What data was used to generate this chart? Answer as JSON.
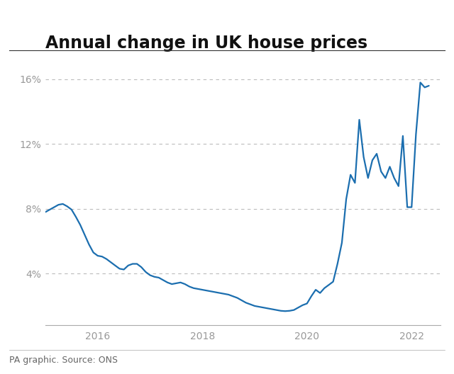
{
  "title": "Annual change in UK house prices",
  "source": "PA graphic. Source: ONS",
  "line_color": "#1b6eaf",
  "background_color": "#ffffff",
  "title_fontsize": 17,
  "source_fontsize": 9,
  "ytick_labels": [
    "4%",
    "8%",
    "12%",
    "16%"
  ],
  "ytick_values": [
    4,
    8,
    12,
    16
  ],
  "xtick_labels": [
    "2016",
    "2018",
    "2020",
    "2022"
  ],
  "xlim_start": 2015.0,
  "xlim_end": 2022.55,
  "ylim_min": 0.8,
  "ylim_max": 17.2,
  "x": [
    2015.0,
    2015.083,
    2015.167,
    2015.25,
    2015.333,
    2015.417,
    2015.5,
    2015.583,
    2015.667,
    2015.75,
    2015.833,
    2015.917,
    2016.0,
    2016.083,
    2016.167,
    2016.25,
    2016.333,
    2016.417,
    2016.5,
    2016.583,
    2016.667,
    2016.75,
    2016.833,
    2016.917,
    2017.0,
    2017.083,
    2017.167,
    2017.25,
    2017.333,
    2017.417,
    2017.5,
    2017.583,
    2017.667,
    2017.75,
    2017.833,
    2017.917,
    2018.0,
    2018.083,
    2018.167,
    2018.25,
    2018.333,
    2018.417,
    2018.5,
    2018.583,
    2018.667,
    2018.75,
    2018.833,
    2018.917,
    2019.0,
    2019.083,
    2019.167,
    2019.25,
    2019.333,
    2019.417,
    2019.5,
    2019.583,
    2019.667,
    2019.75,
    2019.833,
    2019.917,
    2020.0,
    2020.083,
    2020.167,
    2020.25,
    2020.333,
    2020.417,
    2020.5,
    2020.583,
    2020.667,
    2020.75,
    2020.833,
    2020.917,
    2021.0,
    2021.083,
    2021.167,
    2021.25,
    2021.333,
    2021.417,
    2021.5,
    2021.583,
    2021.667,
    2021.75,
    2021.833,
    2021.917,
    2022.0,
    2022.083,
    2022.167,
    2022.25,
    2022.33
  ],
  "y": [
    7.8,
    7.95,
    8.1,
    8.25,
    8.3,
    8.15,
    7.95,
    7.5,
    7.0,
    6.4,
    5.8,
    5.3,
    5.1,
    5.05,
    4.9,
    4.7,
    4.5,
    4.3,
    4.25,
    4.5,
    4.6,
    4.6,
    4.4,
    4.1,
    3.9,
    3.8,
    3.75,
    3.6,
    3.45,
    3.35,
    3.4,
    3.45,
    3.35,
    3.2,
    3.1,
    3.05,
    3.0,
    2.95,
    2.9,
    2.85,
    2.8,
    2.75,
    2.7,
    2.6,
    2.5,
    2.35,
    2.2,
    2.1,
    2.0,
    1.95,
    1.9,
    1.85,
    1.8,
    1.75,
    1.7,
    1.68,
    1.7,
    1.75,
    1.9,
    2.05,
    2.15,
    2.6,
    3.0,
    2.8,
    3.1,
    3.3,
    3.5,
    4.6,
    5.9,
    8.6,
    10.1,
    9.6,
    13.5,
    11.2,
    9.9,
    11.0,
    11.4,
    10.3,
    9.9,
    10.6,
    9.9,
    9.4,
    12.5,
    8.1,
    8.1,
    12.6,
    15.8,
    15.5,
    15.6
  ]
}
